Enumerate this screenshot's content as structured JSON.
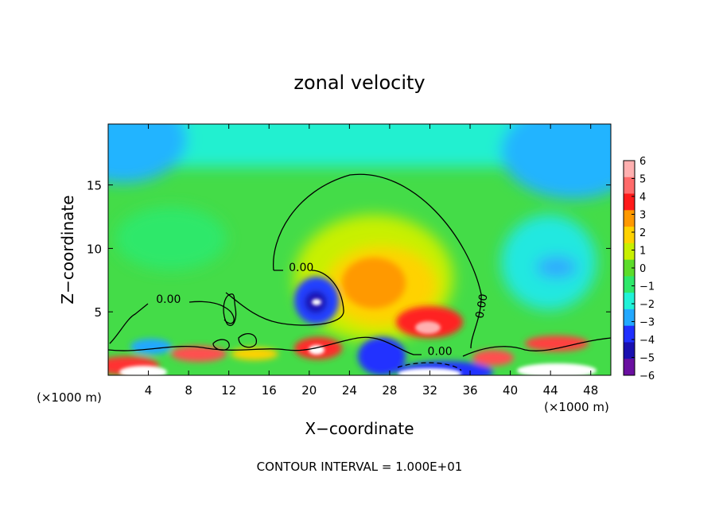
{
  "chart_data": {
    "type": "heatmap",
    "title": "zonal velocity",
    "xlabel": "X−coordinate",
    "ylabel": "Z−coordinate",
    "x_unit_label_left": "(×1000 m)",
    "x_unit_label_right": "(×1000 m)",
    "footer": "CONTOUR INTERVAL = 1.000E+01",
    "xlim": [
      0,
      50
    ],
    "ylim": [
      0,
      19.8
    ],
    "x_ticks": [
      4,
      8,
      12,
      16,
      20,
      24,
      28,
      32,
      36,
      40,
      44,
      48
    ],
    "x_tick_labels": [
      "4",
      "8",
      "12",
      "16",
      "20",
      "24",
      "28",
      "32",
      "36",
      "40",
      "44",
      "48"
    ],
    "y_ticks": [
      5,
      10,
      15
    ],
    "y_tick_labels": [
      "5",
      "10",
      "15"
    ],
    "contour_labels": [
      {
        "text": "0.00",
        "x": 19.2,
        "z": 8.2
      },
      {
        "text": "0.00",
        "x": 6.0,
        "z": 5.7
      },
      {
        "text": "0.00",
        "x": 33.0,
        "z": 1.6
      },
      {
        "text": "0.00",
        "x": 37.5,
        "z": 5.4
      }
    ],
    "colorbar": {
      "ticks": [
        "6",
        "5",
        "4",
        "3",
        "2",
        "1",
        "0",
        "−1",
        "−2",
        "−3",
        "−4",
        "−5",
        "−6"
      ],
      "levels": [
        6,
        5,
        4,
        3,
        2,
        1,
        0,
        -1,
        -2,
        -3,
        -4,
        -5,
        -6
      ],
      "colors": [
        "#ffb0b0",
        "#ff6a6a",
        "#ff1a1a",
        "#ff9900",
        "#ffd200",
        "#c8f000",
        "#5cdc2a",
        "#2ee86a",
        "#20f2d8",
        "#22a8ff",
        "#2030ff",
        "#1a10b0",
        "#6a10a0"
      ]
    },
    "features": [
      {
        "kind": "background-upper-left",
        "x": 2,
        "z": 18,
        "value": -3
      },
      {
        "kind": "background-upper-right",
        "x": 46,
        "z": 17,
        "value": -3
      },
      {
        "kind": "positive-lobe",
        "x": 26.5,
        "z": 7.5,
        "value": 3
      },
      {
        "kind": "positive-core",
        "x": 32,
        "z": 4,
        "value": 5
      },
      {
        "kind": "negative-core",
        "x": 20.5,
        "z": 6,
        "value": -6
      },
      {
        "kind": "surface-positive",
        "x": 21,
        "z": 2,
        "value": 5
      },
      {
        "kind": "surface-negative",
        "x": 27,
        "z": 1.5,
        "value": -4
      },
      {
        "kind": "low-level-left",
        "x": 2,
        "z": 1,
        "value": 6
      },
      {
        "kind": "low-level-right",
        "x": 42,
        "z": 1,
        "value": 6
      }
    ]
  }
}
